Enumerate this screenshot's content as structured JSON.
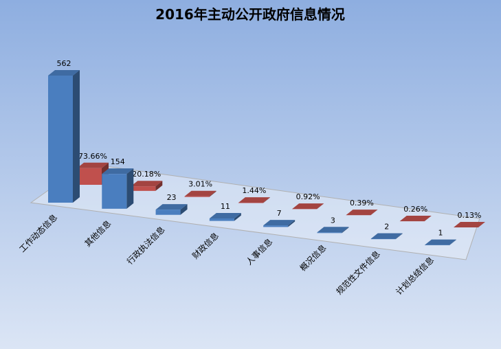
{
  "chart_data": {
    "type": "bar3d",
    "title": "2016年主动公开政府信息情况",
    "categories": [
      "工作动态信息",
      "其他信息",
      "行政执法信息",
      "财政信息",
      "人事信息",
      "概况信息",
      "规范性文件信息",
      "计划总结信息"
    ],
    "series": [
      {
        "color": "#4a7ebf",
        "values": [
          562,
          154,
          23,
          11,
          7,
          3,
          2,
          1
        ]
      },
      {
        "color": "#c0504d",
        "values": [
          73.66,
          20.18,
          3.01,
          1.44,
          0.92,
          0.39,
          0.26,
          0.13
        ],
        "value_labels": [
          "73.66%",
          "20.18%",
          "3.01%",
          "1.44%",
          "0.92%",
          "0.39%",
          "0.26%",
          "0.13%"
        ]
      }
    ]
  }
}
